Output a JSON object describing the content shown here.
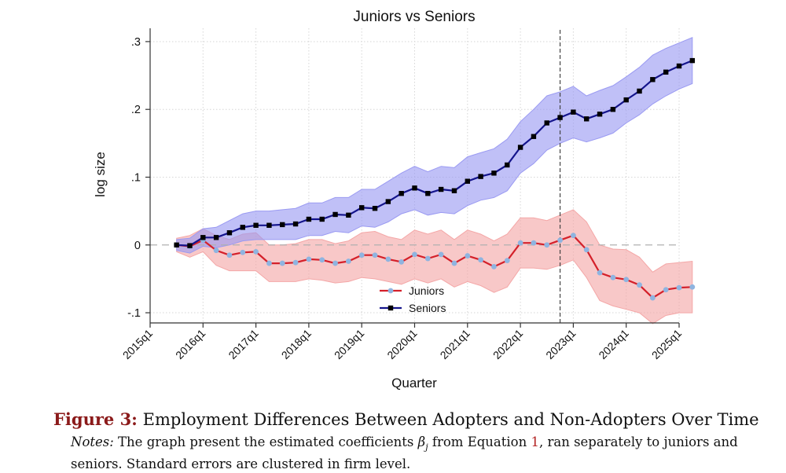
{
  "chart_data": {
    "type": "line",
    "title": "Juniors vs Seniors",
    "xlabel": "Quarter",
    "ylabel": "log size",
    "x_start_quarter": "2015q3",
    "x_tick_labels": [
      "2015q1",
      "2016q1",
      "2017q1",
      "2018q1",
      "2019q1",
      "2020q1",
      "2021q1",
      "2022q1",
      "2023q1",
      "2024q1",
      "2025q1"
    ],
    "y_ticks": [
      -0.1,
      0,
      0.1,
      0.2,
      0.3
    ],
    "y_tick_labels": [
      "-.1",
      "0",
      ".1",
      ".2",
      ".3"
    ],
    "ylim": [
      -0.115,
      0.315
    ],
    "grid": true,
    "legend_position": "bottom-center",
    "reference_line": {
      "type": "vertical",
      "at_quarter": "2022q4",
      "style": "dashed"
    },
    "zero_line": {
      "type": "horizontal",
      "at": 0,
      "style": "dashed"
    },
    "series": [
      {
        "name": "Juniors",
        "line_color": "#d4202a",
        "marker_color": "#8fb4e0",
        "band_color": "#f4a7a7",
        "values": [
          0,
          -0.002,
          0.007,
          -0.008,
          -0.015,
          -0.011,
          -0.01,
          -0.027,
          -0.027,
          -0.026,
          -0.021,
          -0.022,
          -0.027,
          -0.024,
          -0.015,
          -0.015,
          -0.021,
          -0.025,
          -0.014,
          -0.02,
          -0.014,
          -0.027,
          -0.016,
          -0.022,
          -0.032,
          -0.023,
          0.003,
          0.003,
          0.0,
          0.007,
          0.014,
          -0.007,
          -0.041,
          -0.048,
          -0.051,
          -0.059,
          -0.078,
          -0.066,
          -0.063,
          -0.062
        ],
        "lower": [
          -0.01,
          -0.018,
          -0.01,
          -0.03,
          -0.038,
          -0.038,
          -0.038,
          -0.054,
          -0.054,
          -0.054,
          -0.05,
          -0.052,
          -0.056,
          -0.054,
          -0.048,
          -0.05,
          -0.054,
          -0.058,
          -0.05,
          -0.056,
          -0.05,
          -0.062,
          -0.054,
          -0.06,
          -0.07,
          -0.062,
          -0.034,
          -0.034,
          -0.036,
          -0.03,
          -0.022,
          -0.048,
          -0.082,
          -0.09,
          -0.095,
          -0.1,
          -0.116,
          -0.104,
          -0.1,
          -0.1
        ],
        "upper": [
          0.01,
          0.014,
          0.024,
          0.014,
          0.008,
          0.016,
          0.018,
          0.0,
          0.0,
          0.002,
          0.008,
          0.008,
          0.002,
          0.006,
          0.018,
          0.02,
          0.012,
          0.008,
          0.022,
          0.016,
          0.022,
          0.008,
          0.022,
          0.016,
          0.006,
          0.016,
          0.04,
          0.04,
          0.036,
          0.044,
          0.052,
          0.034,
          0.0,
          -0.006,
          -0.007,
          -0.018,
          -0.04,
          -0.028,
          -0.026,
          -0.024
        ]
      },
      {
        "name": "Seniors",
        "line_color": "#14148c",
        "marker_color": "#000000",
        "band_color": "#9a9af2",
        "values": [
          0,
          -0.001,
          0.011,
          0.011,
          0.018,
          0.026,
          0.029,
          0.029,
          0.03,
          0.031,
          0.038,
          0.038,
          0.045,
          0.044,
          0.055,
          0.054,
          0.064,
          0.076,
          0.084,
          0.076,
          0.082,
          0.08,
          0.094,
          0.101,
          0.106,
          0.118,
          0.144,
          0.16,
          0.18,
          0.188,
          0.196,
          0.186,
          0.193,
          0.2,
          0.214,
          0.227,
          0.244,
          0.255,
          0.264,
          0.272
        ],
        "lower": [
          -0.008,
          -0.012,
          -0.002,
          -0.004,
          0.0,
          0.006,
          0.008,
          0.008,
          0.008,
          0.008,
          0.014,
          0.014,
          0.02,
          0.018,
          0.028,
          0.026,
          0.034,
          0.046,
          0.052,
          0.044,
          0.048,
          0.046,
          0.058,
          0.066,
          0.07,
          0.08,
          0.106,
          0.12,
          0.14,
          0.15,
          0.158,
          0.152,
          0.158,
          0.165,
          0.18,
          0.192,
          0.208,
          0.22,
          0.23,
          0.238
        ],
        "upper": [
          0.008,
          0.01,
          0.024,
          0.026,
          0.036,
          0.046,
          0.05,
          0.05,
          0.052,
          0.054,
          0.062,
          0.062,
          0.07,
          0.07,
          0.082,
          0.082,
          0.094,
          0.106,
          0.116,
          0.108,
          0.116,
          0.114,
          0.13,
          0.136,
          0.142,
          0.156,
          0.182,
          0.2,
          0.22,
          0.226,
          0.234,
          0.22,
          0.228,
          0.235,
          0.248,
          0.262,
          0.28,
          0.29,
          0.298,
          0.306
        ]
      }
    ]
  },
  "caption": {
    "figure_label": "Figure 3:",
    "title": "Employment Differences Between Adopters and Non-Adopters Over Time",
    "notes_label": "Notes:",
    "notes_part1": "The graph present the estimated coefficients",
    "notes_symbol": "β",
    "notes_subscript": "j",
    "notes_part2": "from Equation",
    "notes_eq_ref": "1",
    "notes_part3": ", ran separately to juniors and seniors. Standard errors are clustered in firm level."
  }
}
